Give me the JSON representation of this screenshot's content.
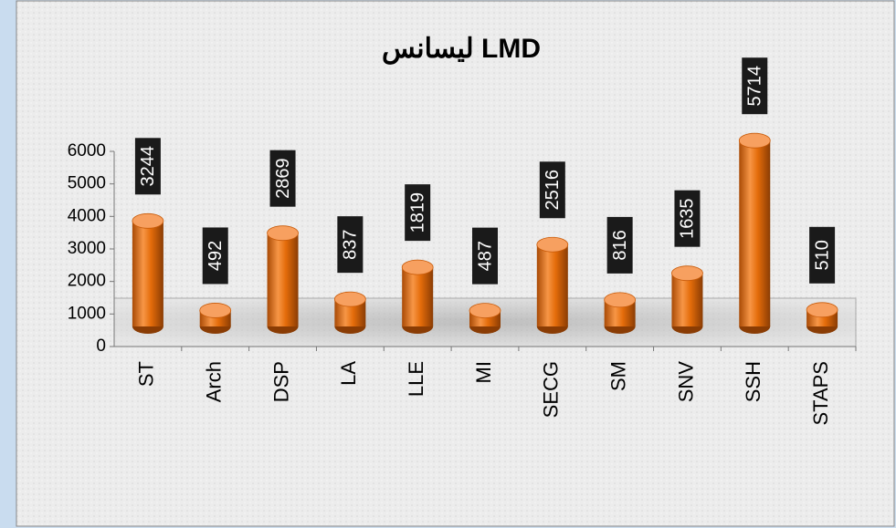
{
  "chart_data": {
    "type": "bar",
    "title": "ليسانس LMD",
    "categories": [
      "ST",
      "Arch",
      "DSP",
      "LA",
      "LLE",
      "MI",
      "SECG",
      "SM",
      "SNV",
      "SSH",
      "STAPS"
    ],
    "values": [
      3244,
      492,
      2869,
      837,
      1819,
      487,
      2516,
      816,
      1635,
      5714,
      510
    ],
    "color": "#e46c0a",
    "ylim": [
      0,
      6000
    ],
    "yticks": [
      0,
      1000,
      2000,
      3000,
      4000,
      5000,
      6000
    ]
  }
}
